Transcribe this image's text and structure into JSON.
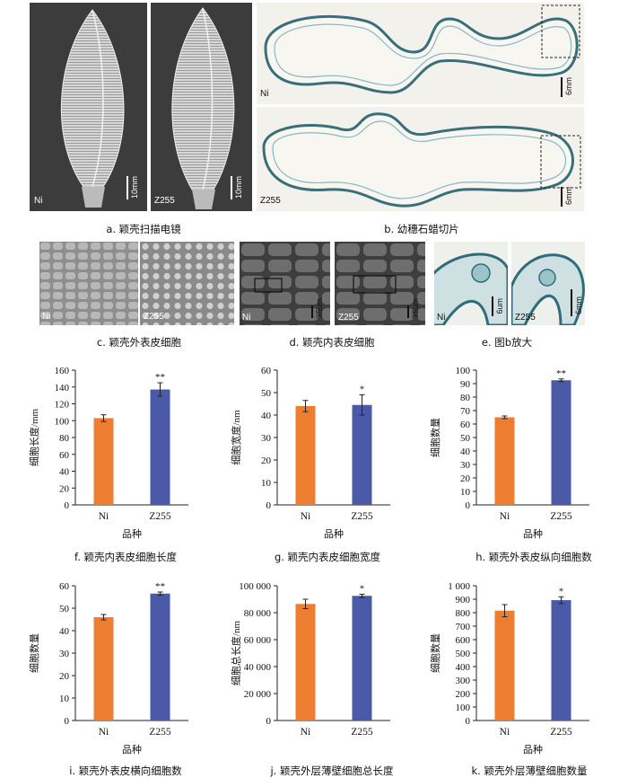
{
  "panels": {
    "a": {
      "caption": "a. 颖壳扫描电镜",
      "labels": [
        "Ni",
        "Z255"
      ],
      "scale": "10mm"
    },
    "b": {
      "caption": "b. 幼穗石蜡切片",
      "labels": [
        "Ni",
        "Z255"
      ],
      "scale": "6mm"
    },
    "c": {
      "caption": "c. 颖壳外表皮细胞",
      "labels": [
        "Ni",
        "Z255"
      ]
    },
    "d": {
      "caption": "d. 颖壳内表皮细胞",
      "labels": [
        "Ni",
        "Z255"
      ],
      "scale": "35um"
    },
    "e": {
      "caption": "e. 图b放大",
      "labels": [
        "Ni",
        "Z255"
      ],
      "scale_left": "6um",
      "scale_right": "6mm"
    }
  },
  "colors": {
    "ni": "#ed7d31",
    "z255": "#4a5aa8"
  },
  "chart_data": [
    {
      "id": "f",
      "type": "bar",
      "caption": "f. 颖壳内表皮细胞长度",
      "categories": [
        "Ni",
        "Z255"
      ],
      "values": [
        103,
        137
      ],
      "errors": [
        4,
        8
      ],
      "significance": [
        "",
        "**"
      ],
      "ylabel": "细胞长度/mm",
      "xlabel": "品种",
      "ylim": [
        0,
        160
      ],
      "yticks": [
        0,
        20,
        40,
        60,
        80,
        100,
        120,
        140,
        160
      ],
      "yticklabels": [
        "0",
        "20",
        "40",
        "60",
        "80",
        "100",
        "120",
        "140",
        "160"
      ]
    },
    {
      "id": "g",
      "type": "bar",
      "caption": "g. 颖壳内表皮细胞宽度",
      "categories": [
        "Ni",
        "Z255"
      ],
      "values": [
        44,
        44.5
      ],
      "errors": [
        2.5,
        4.5
      ],
      "significance": [
        "",
        "*"
      ],
      "ylabel": "细胞宽度/nm",
      "xlabel": "品种",
      "ylim": [
        0,
        60
      ],
      "yticks": [
        0,
        10,
        20,
        30,
        40,
        50,
        60
      ],
      "yticklabels": [
        "0",
        "10",
        "20",
        "30",
        "40",
        "50",
        "60"
      ]
    },
    {
      "id": "h",
      "type": "bar",
      "caption": "h. 颖壳外表皮纵向细胞数",
      "categories": [
        "Ni",
        "Z255"
      ],
      "values": [
        65,
        92.5
      ],
      "errors": [
        1,
        1
      ],
      "significance": [
        "",
        "**"
      ],
      "ylabel": "细胞数量",
      "xlabel": "品种",
      "ylim": [
        0,
        100
      ],
      "yticks": [
        0,
        10,
        20,
        30,
        40,
        50,
        60,
        70,
        80,
        90,
        100
      ],
      "yticklabels": [
        "0",
        "10",
        "20",
        "30",
        "40",
        "50",
        "60",
        "70",
        "80",
        "90",
        "100"
      ]
    },
    {
      "id": "i",
      "type": "bar",
      "caption": "i. 颖壳外表皮横向细胞数",
      "categories": [
        "Ni",
        "Z255"
      ],
      "values": [
        46,
        56.5
      ],
      "errors": [
        1.2,
        0.7
      ],
      "significance": [
        "",
        "**"
      ],
      "ylabel": "细胞数量",
      "xlabel": "品种",
      "ylim": [
        0,
        60
      ],
      "yticks": [
        0,
        10,
        20,
        30,
        40,
        50,
        60
      ],
      "yticklabels": [
        "0",
        "10",
        "20",
        "30",
        "40",
        "50",
        "60"
      ]
    },
    {
      "id": "j",
      "type": "bar",
      "caption": "j. 颖壳外层薄壁细胞总长度",
      "categories": [
        "Ni",
        "Z255"
      ],
      "values": [
        86500,
        92500
      ],
      "errors": [
        3500,
        1200
      ],
      "significance": [
        "",
        "*"
      ],
      "ylabel": "细胞总长度/nm",
      "xlabel": "",
      "ylim": [
        0,
        100000
      ],
      "yticks": [
        0,
        20000,
        40000,
        60000,
        80000,
        100000
      ],
      "yticklabels": [
        "0",
        "20 000",
        "40 000",
        "60 000",
        "80 000",
        "100 000"
      ]
    },
    {
      "id": "k",
      "type": "bar",
      "caption": "k. 颖壳外层薄壁细胞数量",
      "categories": [
        "Ni",
        "Z255"
      ],
      "values": [
        815,
        893
      ],
      "errors": [
        45,
        25
      ],
      "significance": [
        "",
        "*"
      ],
      "ylabel": "细胞数量",
      "xlabel": "品种",
      "ylim": [
        0,
        1000
      ],
      "yticks": [
        0,
        100,
        200,
        300,
        400,
        500,
        600,
        700,
        800,
        900,
        1000
      ],
      "yticklabels": [
        "0",
        "100",
        "200",
        "300",
        "400",
        "500",
        "600",
        "700",
        "800",
        "900",
        "1 000"
      ]
    }
  ]
}
